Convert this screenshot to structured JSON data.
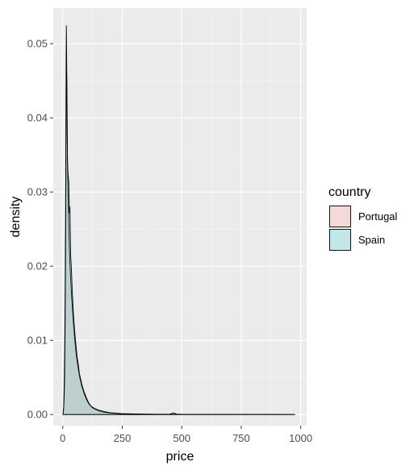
{
  "chart_data": {
    "type": "area",
    "title": "",
    "xlabel": "price",
    "ylabel": "density",
    "xlim": [
      -40,
      1025
    ],
    "ylim": [
      -0.0015,
      0.0548
    ],
    "xticks": [
      0,
      250,
      500,
      750,
      1000
    ],
    "xtick_labels": [
      "0",
      "250",
      "500",
      "750",
      "1000"
    ],
    "yticks": [
      0.0,
      0.01,
      0.02,
      0.03,
      0.04,
      0.05
    ],
    "ytick_labels": [
      "0.00",
      "0.01",
      "0.02",
      "0.03",
      "0.04",
      "0.05"
    ],
    "grid": true,
    "legend": {
      "title": "country",
      "placement": "right"
    },
    "series": [
      {
        "name": "Portugal",
        "fill": "#F8766D",
        "alpha": 0.2,
        "x": [
          1,
          4,
          6,
          8,
          10,
          12,
          14,
          16,
          18,
          20,
          22,
          25,
          28,
          32,
          36,
          40,
          45,
          50,
          55,
          60,
          70,
          80,
          90,
          100,
          110,
          125,
          150,
          175,
          200,
          250,
          300,
          350,
          400,
          450,
          500,
          600,
          700,
          800,
          900,
          975
        ],
        "y": [
          0.0,
          0.0008,
          0.0025,
          0.005,
          0.012,
          0.022,
          0.0405,
          0.0468,
          0.042,
          0.0335,
          0.0295,
          0.026,
          0.022,
          0.019,
          0.0165,
          0.0145,
          0.0122,
          0.0102,
          0.0085,
          0.0072,
          0.0052,
          0.0038,
          0.0028,
          0.002,
          0.0014,
          0.0009,
          0.0005,
          0.0003,
          0.0002,
          0.0001,
          6e-05,
          4e-05,
          3e-05,
          2e-05,
          2e-05,
          1e-05,
          1e-05,
          1e-05,
          1e-05,
          0.0
        ]
      },
      {
        "name": "Spain",
        "fill": "#00BFC4",
        "alpha": 0.2,
        "x": [
          1,
          4,
          6,
          8,
          10,
          12,
          14,
          15,
          16,
          17,
          18,
          20,
          22,
          25,
          28,
          30,
          33,
          36,
          40,
          45,
          50,
          55,
          60,
          65,
          70,
          80,
          90,
          100,
          110,
          120,
          135,
          150,
          175,
          200,
          250,
          300,
          350,
          400,
          450,
          465,
          480,
          500,
          600,
          700,
          800,
          900,
          975
        ],
        "y": [
          0.0,
          0.0012,
          0.004,
          0.0085,
          0.0165,
          0.028,
          0.046,
          0.0524,
          0.049,
          0.045,
          0.0395,
          0.034,
          0.0325,
          0.0315,
          0.0272,
          0.028,
          0.0215,
          0.0198,
          0.0165,
          0.0135,
          0.0112,
          0.0095,
          0.0078,
          0.0068,
          0.0055,
          0.0041,
          0.003,
          0.0022,
          0.0015,
          0.0011,
          0.0008,
          0.0006,
          0.0004,
          0.00025,
          0.00012,
          8e-05,
          5e-05,
          4e-05,
          6e-05,
          0.0002,
          5e-05,
          3e-05,
          2e-05,
          1e-05,
          1e-05,
          1e-05,
          0.0
        ]
      }
    ]
  }
}
